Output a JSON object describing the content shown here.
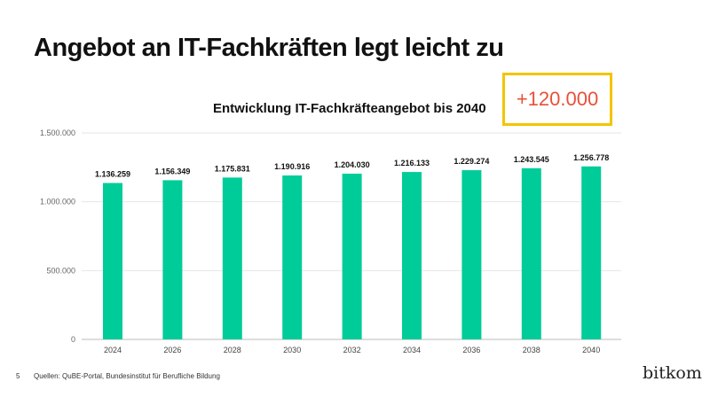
{
  "title": "Angebot an IT-Fachkräften legt leicht zu",
  "badge": "+120.000",
  "footer": {
    "page": "5",
    "source": "Quellen: QuBE-Portal, Bundesinstitut für Berufliche Bildung",
    "logo": "bitkom"
  },
  "colors": {
    "bar": "#00cc99",
    "badge_border": "#f2c500",
    "badge_text": "#e8503a"
  },
  "chart_data": {
    "type": "bar",
    "title": "Entwicklung IT-Fachkräfteangebot bis 2040",
    "categories": [
      "2024",
      "2026",
      "2028",
      "2030",
      "2032",
      "2034",
      "2036",
      "2038",
      "2040"
    ],
    "values": [
      1136259,
      1156349,
      1175831,
      1190916,
      1204030,
      1216133,
      1229274,
      1243545,
      1256778
    ],
    "data_labels": [
      "1.136.259",
      "1.156.349",
      "1.175.831",
      "1.190.916",
      "1.204.030",
      "1.216.133",
      "1.229.274",
      "1.243.545",
      "1.256.778"
    ],
    "yticks": [
      0,
      500000,
      1000000,
      1500000
    ],
    "ytick_labels": [
      "0",
      "500.000",
      "1.000.000",
      "1.500.000"
    ],
    "ylim": [
      0,
      1500000
    ],
    "grid": true,
    "xlabel": "",
    "ylabel": ""
  }
}
